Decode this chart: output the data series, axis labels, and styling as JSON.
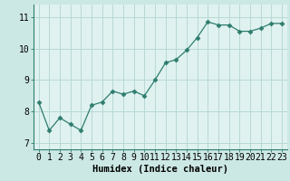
{
  "x": [
    0,
    1,
    2,
    3,
    4,
    5,
    6,
    7,
    8,
    9,
    10,
    11,
    12,
    13,
    14,
    15,
    16,
    17,
    18,
    19,
    20,
    21,
    22,
    23
  ],
  "y": [
    8.3,
    7.4,
    7.8,
    7.6,
    7.4,
    8.2,
    8.3,
    8.65,
    8.55,
    8.65,
    8.5,
    9.0,
    9.55,
    9.65,
    9.95,
    10.35,
    10.85,
    10.75,
    10.75,
    10.55,
    10.55,
    10.65,
    10.8,
    10.8
  ],
  "line_color": "#2e7d6e",
  "marker": "D",
  "marker_size": 2.5,
  "bg_color": "#cce8e4",
  "plot_bg": "#dff2f0",
  "grid_color": "#b8d8d4",
  "xlabel": "Humidex (Indice chaleur)",
  "ylim": [
    6.8,
    11.4
  ],
  "xlim": [
    -0.5,
    23.5
  ],
  "yticks": [
    7,
    8,
    9,
    10,
    11
  ],
  "xticks": [
    0,
    1,
    2,
    3,
    4,
    5,
    6,
    7,
    8,
    9,
    10,
    11,
    12,
    13,
    14,
    15,
    16,
    17,
    18,
    19,
    20,
    21,
    22,
    23
  ],
  "xlabel_fontsize": 7.5,
  "tick_fontsize": 7.0
}
